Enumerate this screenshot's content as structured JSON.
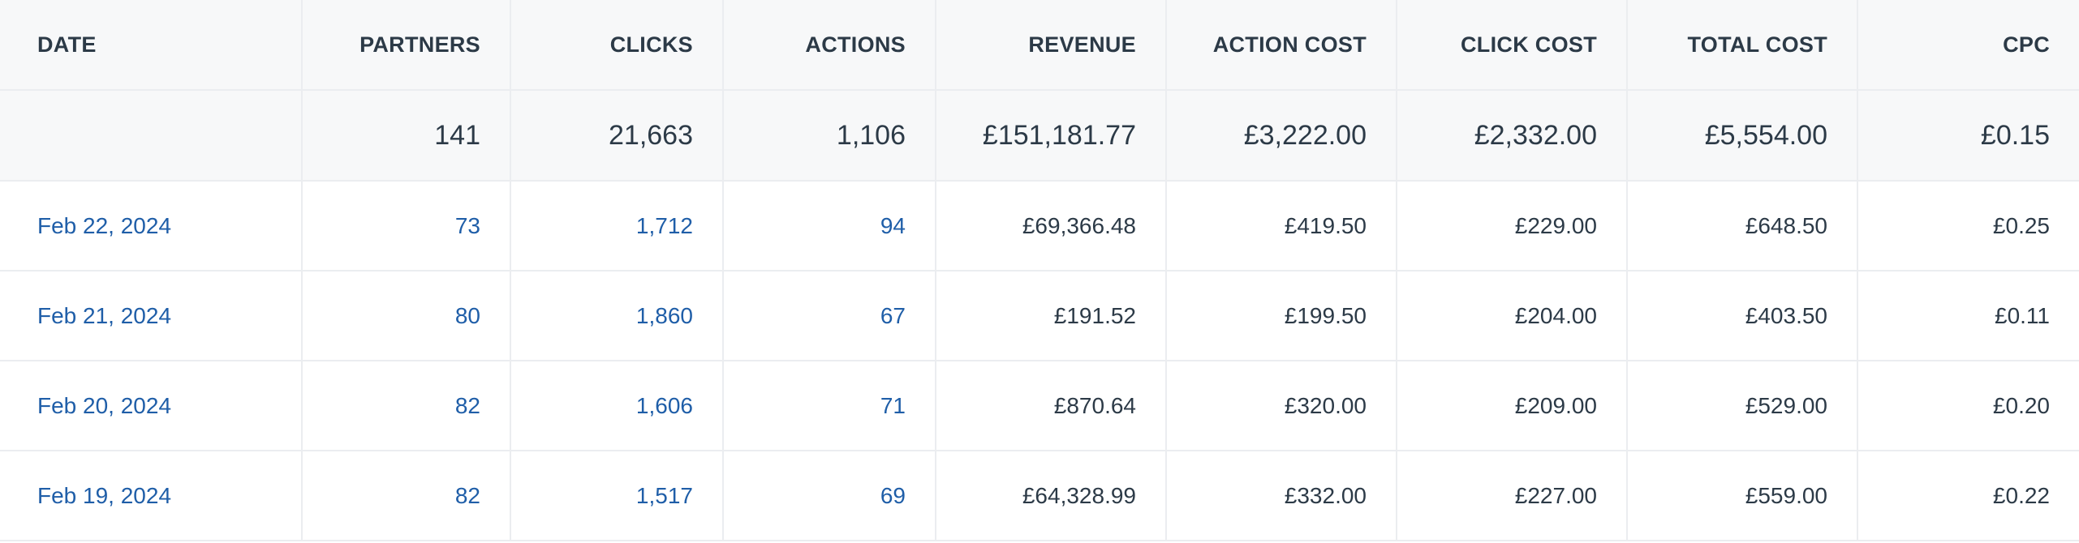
{
  "table": {
    "columns": [
      "DATE",
      "PARTNERS",
      "CLICKS",
      "ACTIONS",
      "REVENUE",
      "ACTION COST",
      "CLICK COST",
      "TOTAL COST",
      "CPC"
    ],
    "totals": {
      "date": "",
      "partners": "141",
      "clicks": "21,663",
      "actions": "1,106",
      "revenue": "£151,181.77",
      "action_cost": "£3,222.00",
      "click_cost": "£2,332.00",
      "total_cost": "£5,554.00",
      "cpc": "£0.15"
    },
    "rows": [
      {
        "date": "Feb 22, 2024",
        "partners": "73",
        "clicks": "1,712",
        "actions": "94",
        "revenue": "£69,366.48",
        "action_cost": "£419.50",
        "click_cost": "£229.00",
        "total_cost": "£648.50",
        "cpc": "£0.25"
      },
      {
        "date": "Feb 21, 2024",
        "partners": "80",
        "clicks": "1,860",
        "actions": "67",
        "revenue": "£191.52",
        "action_cost": "£199.50",
        "click_cost": "£204.00",
        "total_cost": "£403.50",
        "cpc": "£0.11"
      },
      {
        "date": "Feb 20, 2024",
        "partners": "82",
        "clicks": "1,606",
        "actions": "71",
        "revenue": "£870.64",
        "action_cost": "£320.00",
        "click_cost": "£209.00",
        "total_cost": "£529.00",
        "cpc": "£0.20"
      },
      {
        "date": "Feb 19, 2024",
        "partners": "82",
        "clicks": "1,517",
        "actions": "69",
        "revenue": "£64,328.99",
        "action_cost": "£332.00",
        "click_cost": "£227.00",
        "total_cost": "£559.00",
        "cpc": "£0.22"
      }
    ]
  },
  "colors": {
    "header_bg": "#f7f8f9",
    "text": "#2c3a47",
    "link": "#1f5ea8",
    "border": "#ebedf0"
  }
}
